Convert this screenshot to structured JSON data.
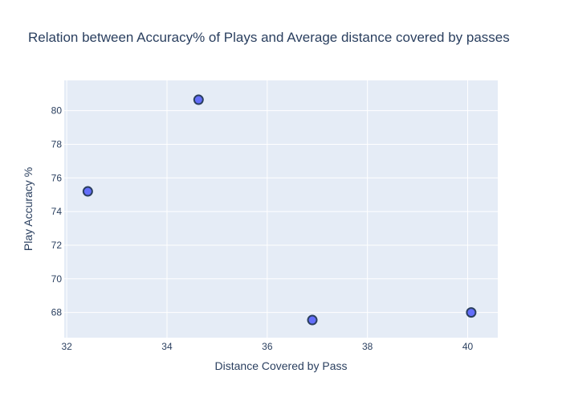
{
  "chart_data": {
    "type": "scatter",
    "title": "Relation between Accuracy% of Plays and Average distance covered by passes",
    "xlabel": "Distance Covered by Pass",
    "ylabel": "Play Accuracy %",
    "x": [
      32.42,
      34.63,
      36.9,
      40.07
    ],
    "y": [
      75.2,
      80.65,
      67.55,
      68.0
    ],
    "xlim": [
      31.95,
      40.6
    ],
    "ylim": [
      66.5,
      81.8
    ],
    "xticks": [
      32,
      34,
      36,
      38,
      40
    ],
    "xtick_labels": [
      "32",
      "34",
      "36",
      "38",
      "40"
    ],
    "yticks": [
      68,
      70,
      72,
      74,
      76,
      78,
      80
    ],
    "ytick_labels": [
      "68",
      "70",
      "72",
      "74",
      "76",
      "78",
      "80"
    ],
    "grid": true,
    "legend": false,
    "colors": {
      "marker_fill": "#636efa",
      "marker_stroke": "#2a3f5f",
      "plot_background": "#e5ecf6",
      "text": "#2a3f5f",
      "gridline": "#ffffff"
    }
  }
}
